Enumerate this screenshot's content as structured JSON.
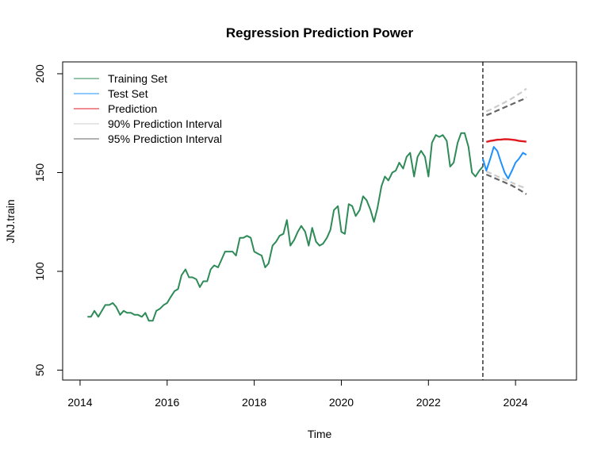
{
  "chart_data": {
    "type": "line",
    "title": "Regression Prediction Power",
    "xlabel": "Time",
    "ylabel": "JNJ.train",
    "xlim": [
      2013.6,
      2025.4
    ],
    "ylim": [
      45,
      206
    ],
    "x_ticks": [
      2014,
      2016,
      2018,
      2020,
      2022,
      2024
    ],
    "y_ticks": [
      50,
      100,
      150,
      200
    ],
    "grid": false,
    "legend_position": "top-left",
    "split_x": 2023.25,
    "legend": [
      {
        "label": "Training Set",
        "color": "#2e8b57"
      },
      {
        "label": "Test Set",
        "color": "#1e90ff"
      },
      {
        "label": "Prediction",
        "color": "#e0181f"
      },
      {
        "label": "90% Prediction Interval",
        "color": "#cccccc"
      },
      {
        "label": "95% Prediction Interval",
        "color": "#666666"
      }
    ],
    "series": [
      {
        "name": "Training Set",
        "color": "#2e8b57",
        "x": [
          2014.17,
          2014.25,
          2014.33,
          2014.42,
          2014.5,
          2014.58,
          2014.67,
          2014.75,
          2014.83,
          2014.92,
          2015.0,
          2015.08,
          2015.17,
          2015.25,
          2015.33,
          2015.42,
          2015.5,
          2015.58,
          2015.67,
          2015.75,
          2015.83,
          2015.92,
          2016.0,
          2016.08,
          2016.17,
          2016.25,
          2016.33,
          2016.42,
          2016.5,
          2016.58,
          2016.67,
          2016.75,
          2016.83,
          2016.92,
          2017.0,
          2017.08,
          2017.17,
          2017.25,
          2017.33,
          2017.42,
          2017.5,
          2017.58,
          2017.67,
          2017.75,
          2017.83,
          2017.92,
          2018.0,
          2018.08,
          2018.17,
          2018.25,
          2018.33,
          2018.42,
          2018.5,
          2018.58,
          2018.67,
          2018.75,
          2018.83,
          2018.92,
          2019.0,
          2019.08,
          2019.17,
          2019.25,
          2019.33,
          2019.42,
          2019.5,
          2019.58,
          2019.67,
          2019.75,
          2019.83,
          2019.92,
          2020.0,
          2020.08,
          2020.17,
          2020.25,
          2020.33,
          2020.42,
          2020.5,
          2020.58,
          2020.67,
          2020.75,
          2020.83,
          2020.92,
          2021.0,
          2021.08,
          2021.17,
          2021.25,
          2021.33,
          2021.42,
          2021.5,
          2021.58,
          2021.67,
          2021.75,
          2021.83,
          2021.92,
          2022.0,
          2022.08,
          2022.17,
          2022.25,
          2022.33,
          2022.42,
          2022.5,
          2022.58,
          2022.67,
          2022.75,
          2022.83,
          2022.92,
          2023.0,
          2023.08,
          2023.17,
          2023.25
        ],
        "values": [
          77,
          77,
          80,
          77,
          80,
          83,
          83,
          84,
          82,
          78,
          80,
          79,
          79,
          78,
          78,
          77,
          79,
          75,
          75,
          80,
          81,
          83,
          84,
          87,
          90,
          91,
          98,
          101,
          97,
          97,
          96,
          92,
          95,
          95,
          101,
          103,
          102,
          106,
          110,
          110,
          110,
          108,
          117,
          117,
          118,
          117,
          110,
          109,
          108,
          102,
          104,
          113,
          115,
          118,
          119,
          126,
          113,
          116,
          120,
          123,
          120,
          113,
          122,
          115,
          113,
          114,
          117,
          121,
          131,
          133,
          120,
          119,
          134,
          133,
          128,
          131,
          138,
          136,
          131,
          125,
          132,
          143,
          148,
          146,
          150,
          151,
          155,
          152,
          158,
          160,
          148,
          158,
          161,
          158,
          148,
          165,
          169,
          168,
          169,
          166,
          153,
          155,
          165,
          170,
          170,
          163,
          150,
          148,
          151,
          153
        ]
      },
      {
        "name": "Test Set",
        "color": "#1e90ff",
        "x": [
          2023.25,
          2023.33,
          2023.42,
          2023.5,
          2023.58,
          2023.67,
          2023.75,
          2023.83,
          2023.92,
          2024.0,
          2024.08,
          2024.17,
          2024.25
        ],
        "values": [
          157,
          151,
          157,
          163,
          161,
          155,
          150,
          147,
          151,
          155,
          157,
          160,
          159
        ]
      },
      {
        "name": "Prediction",
        "color": "#e0181f",
        "x": [
          2023.33,
          2023.42,
          2023.5,
          2023.58,
          2023.67,
          2023.75,
          2023.83,
          2023.92,
          2024.0,
          2024.08,
          2024.17,
          2024.25
        ],
        "values": [
          165.5,
          166.0,
          166.3,
          166.6,
          166.7,
          166.9,
          166.8,
          166.6,
          166.4,
          166.0,
          165.8,
          165.6
        ]
      },
      {
        "name": "90% Prediction Interval",
        "color": "#cccccc",
        "x": [
          2023.33,
          2023.42,
          2023.5,
          2023.58,
          2023.67,
          2023.75,
          2023.83,
          2023.92,
          2024.0,
          2024.08,
          2024.17,
          2024.25
        ],
        "upper": [
          181.0,
          181.8,
          182.7,
          183.6,
          184.5,
          185.5,
          186.5,
          187.5,
          188.6,
          189.8,
          191.0,
          192.5
        ],
        "lower": [
          150.5,
          149.7,
          148.9,
          148.1,
          147.3,
          146.5,
          145.7,
          144.9,
          144.1,
          143.3,
          142.6,
          141.8
        ]
      },
      {
        "name": "95% Prediction Interval",
        "color": "#666666",
        "x": [
          2023.33,
          2023.42,
          2023.5,
          2023.58,
          2023.67,
          2023.75,
          2023.83,
          2023.92,
          2024.0,
          2024.08,
          2024.17,
          2024.25
        ],
        "upper": [
          179.0,
          179.8,
          180.6,
          181.4,
          182.2,
          183.0,
          183.8,
          184.6,
          185.4,
          186.2,
          187.0,
          188.0
        ],
        "lower": [
          149.0,
          148.2,
          147.4,
          146.6,
          145.8,
          145.0,
          144.2,
          143.4,
          142.4,
          141.4,
          140.2,
          139.0
        ]
      }
    ]
  }
}
